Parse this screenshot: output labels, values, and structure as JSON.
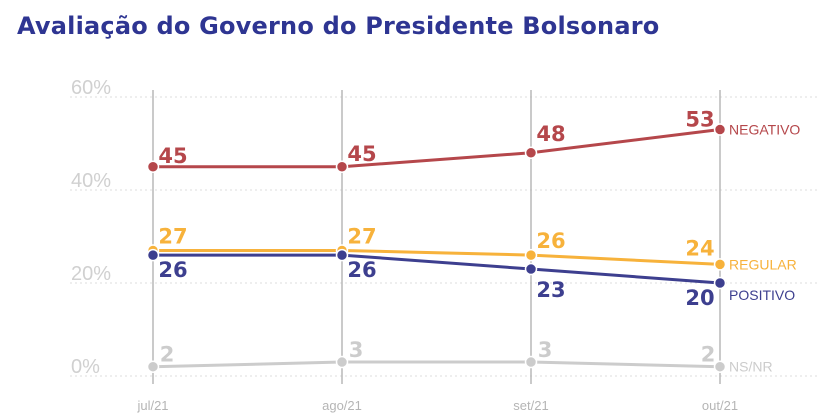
{
  "page": {
    "title": "Avaliação do Governo do Presidente Bolsonaro"
  },
  "chart_data": {
    "type": "line",
    "title": "Avaliação do Governo do Presidente Bolsonaro",
    "categories": [
      "jul/21",
      "ago/21",
      "set/21",
      "out/21"
    ],
    "yticks": [
      "60%",
      "40%",
      "20%",
      "0%"
    ],
    "ytick_values": [
      60,
      40,
      20,
      0
    ],
    "ylim": [
      0,
      60
    ],
    "grid": true,
    "series": [
      {
        "name": "NEGATIVO",
        "color": "#b5474b",
        "values": [
          45,
          45,
          48,
          53
        ],
        "labels": [
          "45",
          "45",
          "48",
          "53"
        ],
        "label_pos": "above"
      },
      {
        "name": "REGULAR",
        "color": "#f7b23b",
        "values": [
          27,
          27,
          26,
          24
        ],
        "labels": [
          "27",
          "27",
          "26",
          "24"
        ],
        "label_pos": "above"
      },
      {
        "name": "POSITIVO",
        "color": "#3d3f8f",
        "values": [
          26,
          26,
          23,
          20
        ],
        "labels": [
          "26",
          "26",
          "23",
          "20"
        ],
        "label_pos": "below"
      },
      {
        "name": "NS/NR",
        "color": "#cccccc",
        "values": [
          2,
          3,
          3,
          2
        ],
        "labels": [
          "2",
          "3",
          "3",
          "2"
        ],
        "label_pos": "above"
      }
    ]
  }
}
